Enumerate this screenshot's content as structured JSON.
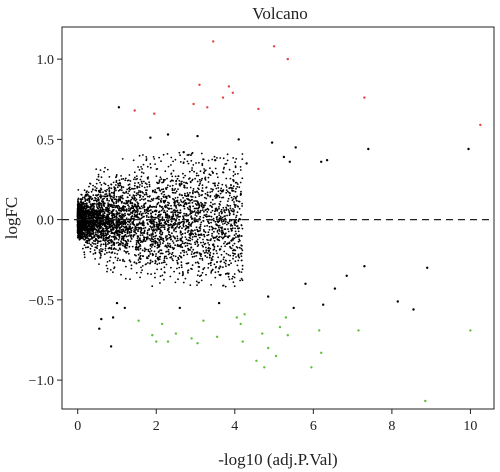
{
  "chart_data": {
    "type": "scatter",
    "title": "Volcano",
    "xlabel": "-log10 (adj.P.Val)",
    "ylabel": "logFC",
    "xlim": [
      -0.4,
      10.6
    ],
    "ylim": [
      -1.18,
      1.2
    ],
    "xticks": [
      0,
      2,
      4,
      6,
      8,
      10
    ],
    "xtick_labels": [
      "0",
      "2",
      "4",
      "6",
      "8",
      "10"
    ],
    "yticks": [
      -1.0,
      -0.5,
      0.0,
      0.5,
      1.0
    ],
    "ytick_labels": [
      "−1.0",
      "−0.5",
      "0.0",
      "0.5",
      "1.0"
    ],
    "grid": false,
    "reference_line": {
      "y": 0,
      "style": "dashed"
    },
    "colors": {
      "up": "#e8413c",
      "down": "#5cbf3a",
      "not_significant": "#000000"
    },
    "series": [
      {
        "group": "up",
        "points": [
          [
            3.45,
            1.11
          ],
          [
            5.0,
            1.08
          ],
          [
            5.35,
            1.0
          ],
          [
            3.1,
            0.84
          ],
          [
            3.85,
            0.83
          ],
          [
            3.95,
            0.79
          ],
          [
            3.7,
            0.76
          ],
          [
            2.95,
            0.72
          ],
          [
            3.3,
            0.7
          ],
          [
            4.6,
            0.69
          ],
          [
            7.3,
            0.76
          ],
          [
            1.45,
            0.68
          ],
          [
            1.95,
            0.66
          ],
          [
            10.25,
            0.59
          ]
        ]
      },
      {
        "group": "down",
        "points": [
          [
            1.55,
            -0.63
          ],
          [
            2.15,
            -0.65
          ],
          [
            3.2,
            -0.63
          ],
          [
            4.05,
            -0.61
          ],
          [
            4.25,
            -0.59
          ],
          [
            4.15,
            -0.65
          ],
          [
            5.3,
            -0.61
          ],
          [
            5.15,
            -0.67
          ],
          [
            6.15,
            -0.69
          ],
          [
            7.15,
            -0.69
          ],
          [
            10.0,
            -0.69
          ],
          [
            1.9,
            -0.72
          ],
          [
            2.5,
            -0.71
          ],
          [
            2.9,
            -0.74
          ],
          [
            3.55,
            -0.73
          ],
          [
            4.7,
            -0.71
          ],
          [
            5.35,
            -0.72
          ],
          [
            4.85,
            -0.8
          ],
          [
            5.05,
            -0.85
          ],
          [
            6.2,
            -0.83
          ],
          [
            2.0,
            -0.76
          ],
          [
            2.3,
            -0.76
          ],
          [
            3.05,
            -0.77
          ],
          [
            4.2,
            -0.76
          ],
          [
            4.55,
            -0.88
          ],
          [
            4.75,
            -0.92
          ],
          [
            5.95,
            -0.92
          ],
          [
            8.85,
            -1.13
          ]
        ]
      },
      {
        "group": "not_significant",
        "points": [
          [
            1.05,
            0.7
          ],
          [
            1.85,
            0.51
          ],
          [
            2.3,
            0.53
          ],
          [
            3.05,
            0.52
          ],
          [
            4.1,
            0.5
          ],
          [
            4.95,
            0.48
          ],
          [
            5.25,
            0.39
          ],
          [
            5.4,
            0.36
          ],
          [
            5.55,
            0.45
          ],
          [
            6.2,
            0.36
          ],
          [
            6.35,
            0.37
          ],
          [
            7.4,
            0.44
          ],
          [
            9.95,
            0.44
          ],
          [
            2.7,
            0.42
          ],
          [
            3.5,
            0.37
          ],
          [
            4.3,
            0.35
          ],
          [
            1.2,
            -0.55
          ],
          [
            0.85,
            -0.79
          ],
          [
            0.9,
            -0.61
          ],
          [
            5.8,
            -0.4
          ],
          [
            6.25,
            -0.53
          ],
          [
            6.55,
            -0.43
          ],
          [
            6.85,
            -0.35
          ],
          [
            7.3,
            -0.29
          ],
          [
            8.15,
            -0.51
          ],
          [
            8.9,
            -0.3
          ],
          [
            8.55,
            -0.56
          ],
          [
            4.85,
            -0.48
          ],
          [
            3.6,
            -0.52
          ],
          [
            0.55,
            -0.68
          ],
          [
            0.6,
            -0.62
          ],
          [
            1.0,
            -0.52
          ],
          [
            2.6,
            -0.55
          ],
          [
            5.5,
            -0.55
          ]
        ]
      }
    ],
    "background_cloud": {
      "description_of_distribution": "dense black cloud hugging the x-axis near x=0, spreading wider with increasing x",
      "count": 4200,
      "x_range": [
        0,
        4.2
      ],
      "y_spread_max": 0.42
    }
  }
}
